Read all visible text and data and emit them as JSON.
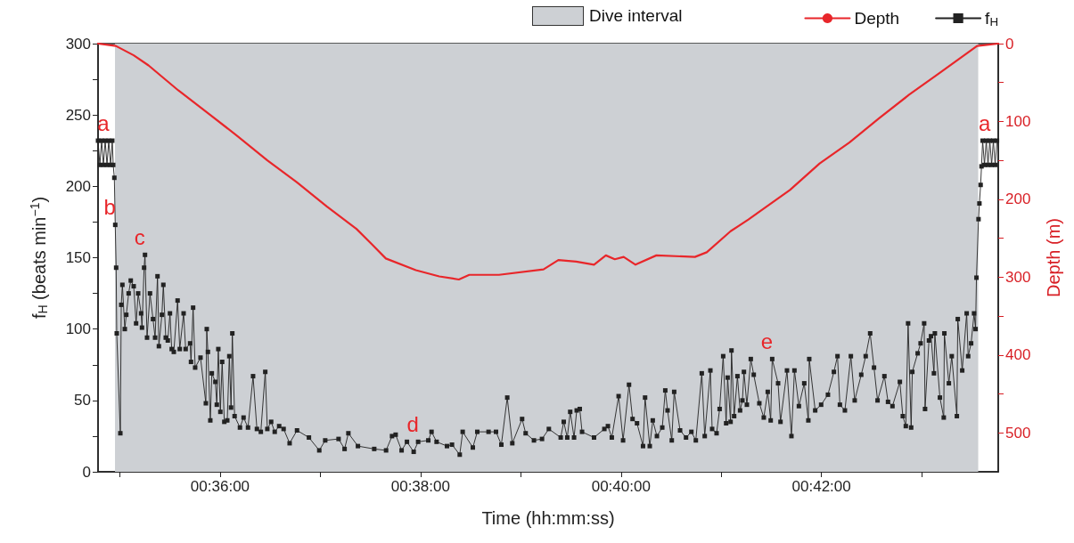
{
  "chart_data": {
    "type": "line",
    "xlabel": "Time (hh:mm:ss)",
    "ylabel": "f$_{H}$ (beats min$^{−1}$)",
    "y2label": "Depth (m)",
    "legend": "top right",
    "xlim": [
      0.5797,
      0.7294
    ],
    "xticks": [
      {
        "value": 0.58333,
        "label": null
      },
      {
        "value": 0.6,
        "label": "00:36:00"
      },
      {
        "value": 0.61667,
        "label": null
      },
      {
        "value": 0.63333,
        "label": "00:38:00"
      },
      {
        "value": 0.65,
        "label": null
      },
      {
        "value": 0.66667,
        "label": "00:40:00"
      },
      {
        "value": 0.68333,
        "label": null
      },
      {
        "value": 0.7,
        "label": "00:42:00"
      },
      {
        "value": 0.71667,
        "label": null
      }
    ],
    "ylim": [
      0,
      300
    ],
    "yticks": [
      0,
      {
        "value": 25,
        "label": null
      },
      50,
      {
        "value": 75,
        "label": null
      },
      100,
      {
        "value": 125,
        "label": null
      },
      150,
      {
        "value": 175,
        "label": null
      },
      200,
      {
        "value": 225,
        "label": null
      },
      250,
      {
        "value": 275,
        "label": null
      },
      300
    ],
    "y2lim": [
      550,
      0
    ],
    "y2ticks": [
      0,
      {
        "value": 50,
        "label": null
      },
      100,
      {
        "value": 150,
        "label": null
      },
      200,
      {
        "value": 250,
        "label": null
      },
      300,
      {
        "value": 350,
        "label": null
      },
      400,
      {
        "value": 450,
        "label": null
      },
      500
    ],
    "bands": [
      {
        "axis": "x",
        "from": 0.58252,
        "to": 0.72607,
        "label": "Dive interval",
        "color": "#cdd0d4"
      }
    ],
    "series": [
      {
        "name": "Depth",
        "color": "#e8262a",
        "axis": "y2",
        "marker": "none",
        "x": [
          0.5797,
          0.58267,
          0.58563,
          0.5881,
          0.59304,
          0.59793,
          0.60292,
          0.60785,
          0.61274,
          0.61773,
          0.62267,
          0.62514,
          0.62756,
          0.63255,
          0.63644,
          0.6397,
          0.64144,
          0.64637,
          0.65378,
          0.65625,
          0.65921,
          0.66218,
          0.66415,
          0.66563,
          0.66711,
          0.66908,
          0.67255,
          0.67896,
          0.68093,
          0.68489,
          0.68785,
          0.68982,
          0.69477,
          0.6997,
          0.70464,
          0.70958,
          0.71452,
          0.71941,
          0.72588,
          0.7294
        ],
        "values": [
          0,
          3,
          15,
          28,
          60,
          89,
          119,
          150,
          178,
          209,
          238,
          257,
          276,
          291,
          299,
          303,
          297,
          297,
          290,
          278,
          280,
          284,
          272,
          277,
          274,
          284,
          272,
          274,
          268,
          241,
          226,
          215,
          188,
          154,
          127,
          96,
          66,
          39,
          3,
          0
        ]
      },
      {
        "name": "f$_{H}$",
        "color": "#222222",
        "marker": "square",
        "x": [
          0.5797,
          0.58,
          0.5803,
          0.58059,
          0.58089,
          0.58119,
          0.58148,
          0.58178,
          0.58207,
          0.58222,
          0.58241,
          0.58256,
          0.58271,
          0.58281,
          0.58341,
          0.58356,
          0.58375,
          0.58415,
          0.5844,
          0.58479,
          0.58514,
          0.58563,
          0.58603,
          0.58637,
          0.58686,
          0.58701,
          0.58736,
          0.58751,
          0.58785,
          0.58834,
          0.58884,
          0.58919,
          0.58959,
          0.58982,
          0.59032,
          0.59056,
          0.59096,
          0.5913,
          0.59166,
          0.59195,
          0.5923,
          0.59293,
          0.59329,
          0.59393,
          0.59427,
          0.59501,
          0.59516,
          0.59551,
          0.59585,
          0.59674,
          0.59763,
          0.59778,
          0.59797,
          0.59837,
          0.59862,
          0.59921,
          0.59945,
          0.5997,
          0.60004,
          0.60034,
          0.6007,
          0.60119,
          0.60153,
          0.60182,
          0.60203,
          0.60241,
          0.6033,
          0.6039,
          0.60464,
          0.60548,
          0.60612,
          0.60677,
          0.60751,
          0.60785,
          0.60849,
          0.60908,
          0.60982,
          0.61056,
          0.61156,
          0.61279,
          0.61477,
          0.61649,
          0.61748,
          0.6197,
          0.6207,
          0.62133,
          0.62292,
          0.62563,
          0.6276,
          0.62859,
          0.62919,
          0.63018,
          0.63107,
          0.63219,
          0.63293,
          0.63462,
          0.63516,
          0.636,
          0.63773,
          0.63856,
          0.63985,
          0.64034,
          0.64203,
          0.64277,
          0.64464,
          0.64588,
          0.64677,
          0.64775,
          0.64859,
          0.65022,
          0.65081,
          0.65219,
          0.65353,
          0.65467,
          0.65664,
          0.65714,
          0.65773,
          0.65822,
          0.65886,
          0.6593,
          0.65981,
          0.66019,
          0.66218,
          0.6639,
          0.66449,
          0.66514,
          0.66627,
          0.66701,
          0.668,
          0.66859,
          0.66933,
          0.67033,
          0.67067,
          0.67145,
          0.67195,
          0.67264,
          0.67353,
          0.67403,
          0.67441,
          0.67511,
          0.67551,
          0.67649,
          0.67748,
          0.67837,
          0.67911,
          0.6801,
          0.68059,
          0.68153,
          0.68182,
          0.68256,
          0.68307,
          0.68366,
          0.68415,
          0.6844,
          0.68489,
          0.68504,
          0.68548,
          0.68603,
          0.68647,
          0.68686,
          0.68711,
          0.6876,
          0.68825,
          0.68874,
          0.68967,
          0.69041,
          0.69107,
          0.69156,
          0.69181,
          0.69279,
          0.69319,
          0.69427,
          0.69501,
          0.69551,
          0.69625,
          0.69714,
          0.69782,
          0.69797,
          0.69896,
          0.69995,
          0.70108,
          0.70207,
          0.70267,
          0.70307,
          0.7039,
          0.70489,
          0.70553,
          0.70662,
          0.70736,
          0.7081,
          0.70874,
          0.70933,
          0.71047,
          0.71107,
          0.71181,
          0.71304,
          0.71353,
          0.71403,
          0.71441,
          0.71492,
          0.71511,
          0.716,
          0.71649,
          0.71708,
          0.71723,
          0.71788,
          0.71822,
          0.71871,
          0.71886,
          0.7197,
          0.72034,
          0.72044,
          0.72119,
          0.72167,
          0.72252,
          0.72267,
          0.72341,
          0.72415,
          0.7244,
          0.72489,
          0.72538,
          0.72563,
          0.72578,
          0.72612,
          0.72627,
          0.72647,
          0.72662,
          0.72681,
          0.72711,
          0.72741,
          0.7277,
          0.728,
          0.7283,
          0.72859,
          0.72889,
          0.72919
        ],
        "values": [
          232,
          215,
          232,
          215,
          232,
          215,
          232,
          215,
          232,
          215,
          206,
          173,
          143,
          97,
          27,
          117,
          131,
          100,
          110,
          125,
          134,
          130,
          104,
          125,
          111,
          101,
          143,
          152,
          94,
          125,
          107,
          94,
          137,
          88,
          110,
          131,
          94,
          92,
          111,
          86,
          84,
          120,
          86,
          111,
          86,
          90,
          77,
          115,
          73,
          80,
          48,
          100,
          84,
          36,
          69,
          63,
          47,
          86,
          42,
          77,
          35,
          36,
          81,
          45,
          97,
          39,
          31,
          38,
          31,
          67,
          30,
          28,
          70,
          30,
          35,
          28,
          32,
          30,
          20,
          29,
          24,
          15,
          22,
          23,
          16,
          27,
          18,
          16,
          15,
          25,
          26,
          15,
          21,
          14,
          21,
          22,
          28,
          21,
          18,
          19,
          12,
          28,
          17,
          28,
          28,
          28,
          19,
          52,
          20,
          37,
          27,
          22,
          23,
          30,
          24,
          35,
          24,
          42,
          24,
          43,
          44,
          28,
          24,
          30,
          32,
          24,
          53,
          22,
          61,
          37,
          34,
          18,
          52,
          18,
          36,
          25,
          31,
          57,
          43,
          22,
          56,
          29,
          24,
          28,
          22,
          69,
          25,
          71,
          30,
          27,
          44,
          81,
          34,
          66,
          35,
          85,
          39,
          67,
          43,
          50,
          70,
          47,
          79,
          68,
          48,
          38,
          56,
          36,
          79,
          62,
          35,
          71,
          25,
          71,
          46,
          62,
          36,
          79,
          43,
          47,
          54,
          70,
          81,
          47,
          43,
          81,
          50,
          68,
          81,
          97,
          73,
          50,
          67,
          49,
          46,
          63,
          39,
          32,
          104,
          31,
          70,
          83,
          90,
          104,
          44,
          92,
          95,
          69,
          97,
          52,
          38,
          97,
          62,
          81,
          39,
          107,
          71,
          111,
          81,
          90,
          111,
          100,
          136,
          177,
          188,
          201,
          214,
          232,
          215,
          232,
          215,
          232,
          215,
          232,
          215,
          232
        ]
      }
    ],
    "annotations": [
      {
        "text": "a",
        "x": 0.58148,
        "y": 232
      },
      {
        "text": "b",
        "x": 0.58256,
        "y": 173
      },
      {
        "text": "c",
        "x": 0.58751,
        "y": 152
      },
      {
        "text": "d",
        "x": 0.63293,
        "y": 21
      },
      {
        "text": "e",
        "x": 0.69181,
        "y": 79
      },
      {
        "text": "a",
        "x": 0.728,
        "y": 232
      }
    ]
  }
}
